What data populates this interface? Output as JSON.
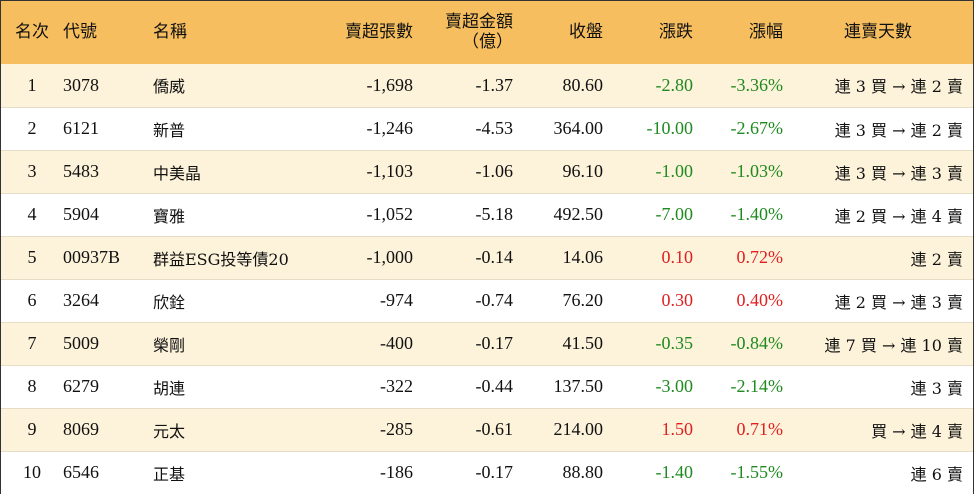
{
  "headers": {
    "rank": "名次",
    "code": "代號",
    "name": "名稱",
    "net_sell_lots": "賣超張數",
    "net_sell_amount_line1": "賣超金額",
    "net_sell_amount_line2": "（億）",
    "close": "收盤",
    "change": "漲跌",
    "change_pct": "漲幅",
    "streak": "連賣天數"
  },
  "rows": [
    {
      "rank": "1",
      "code": "3078",
      "name": "僑威",
      "net_sell_lots": "-1,698",
      "net_sell_amount": "-1.37",
      "close": "80.60",
      "change": "-2.80",
      "change_pct": "-3.36%",
      "direction": "down",
      "streak": "連 3 買 → 連 2 賣"
    },
    {
      "rank": "2",
      "code": "6121",
      "name": "新普",
      "net_sell_lots": "-1,246",
      "net_sell_amount": "-4.53",
      "close": "364.00",
      "change": "-10.00",
      "change_pct": "-2.67%",
      "direction": "down",
      "streak": "連 3 買 → 連 2 賣"
    },
    {
      "rank": "3",
      "code": "5483",
      "name": "中美晶",
      "net_sell_lots": "-1,103",
      "net_sell_amount": "-1.06",
      "close": "96.10",
      "change": "-1.00",
      "change_pct": "-1.03%",
      "direction": "down",
      "streak": "連 3 買 → 連 3 賣"
    },
    {
      "rank": "4",
      "code": "5904",
      "name": "寶雅",
      "net_sell_lots": "-1,052",
      "net_sell_amount": "-5.18",
      "close": "492.50",
      "change": "-7.00",
      "change_pct": "-1.40%",
      "direction": "down",
      "streak": "連 2 買 → 連 4 賣"
    },
    {
      "rank": "5",
      "code": "00937B",
      "name": "群益ESG投等債20",
      "net_sell_lots": "-1,000",
      "net_sell_amount": "-0.14",
      "close": "14.06",
      "change": "0.10",
      "change_pct": "0.72%",
      "direction": "up",
      "streak": "連 2 賣"
    },
    {
      "rank": "6",
      "code": "3264",
      "name": "欣銓",
      "net_sell_lots": "-974",
      "net_sell_amount": "-0.74",
      "close": "76.20",
      "change": "0.30",
      "change_pct": "0.40%",
      "direction": "up",
      "streak": "連 2 買 → 連 3 賣"
    },
    {
      "rank": "7",
      "code": "5009",
      "name": "榮剛",
      "net_sell_lots": "-400",
      "net_sell_amount": "-0.17",
      "close": "41.50",
      "change": "-0.35",
      "change_pct": "-0.84%",
      "direction": "down",
      "streak": "連 7 買 → 連 10 賣"
    },
    {
      "rank": "8",
      "code": "6279",
      "name": "胡連",
      "net_sell_lots": "-322",
      "net_sell_amount": "-0.44",
      "close": "137.50",
      "change": "-3.00",
      "change_pct": "-2.14%",
      "direction": "down",
      "streak": "連 3 賣"
    },
    {
      "rank": "9",
      "code": "8069",
      "name": "元太",
      "net_sell_lots": "-285",
      "net_sell_amount": "-0.61",
      "close": "214.00",
      "change": "1.50",
      "change_pct": "0.71%",
      "direction": "up",
      "streak": "買 → 連 4 賣"
    },
    {
      "rank": "10",
      "code": "6546",
      "name": "正基",
      "net_sell_lots": "-186",
      "net_sell_amount": "-0.17",
      "close": "88.80",
      "change": "-1.40",
      "change_pct": "-1.55%",
      "direction": "down",
      "streak": "連 6 賣"
    }
  ],
  "colors": {
    "header_bg": "#f6be5e",
    "row_alt_bg": "#fdf2da",
    "up": "#e02020",
    "down": "#1f8a1f"
  }
}
